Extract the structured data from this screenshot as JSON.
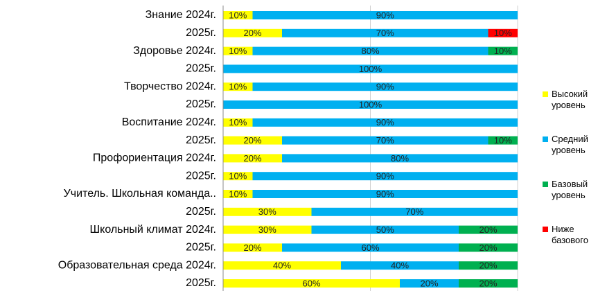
{
  "chart_data": {
    "type": "bar",
    "orientation": "horizontal",
    "stacked": true,
    "categories": [
      "Знание 2024г.",
      "2025г.",
      "Здоровье 2024г.",
      "2025г.",
      "Творчество 2024г.",
      "2025г.",
      "Воспитание 2024г.",
      "2025г.",
      "Профориентация 2024г.",
      "2025г.",
      "Учитель. Школьная команда..",
      "2025г.",
      "Школьный климат 2024г.",
      "2025г.",
      "Образовательная среда 2024г.",
      "2025г."
    ],
    "series": [
      {
        "name": "Высокий уровень",
        "color": "#ffff00",
        "values": [
          10,
          20,
          10,
          0,
          10,
          0,
          10,
          20,
          20,
          10,
          10,
          30,
          30,
          20,
          40,
          60
        ],
        "value_labels": [
          "10%",
          "20%",
          "10%",
          null,
          "10%",
          null,
          "10%",
          "20%",
          "20%",
          "10%",
          "10%",
          "30%",
          "30%",
          "20%",
          "40%",
          "60%"
        ]
      },
      {
        "name": "Средний уровень",
        "color": "#00b0f0",
        "values": [
          90,
          70,
          80,
          100,
          90,
          100,
          90,
          70,
          80,
          90,
          90,
          70,
          50,
          60,
          40,
          20
        ],
        "value_labels": [
          "90%",
          "70%",
          "80%",
          "100%",
          "90%",
          "100%",
          "90%",
          "70%",
          "80%",
          "90%",
          "90%",
          "70%",
          "50%",
          "60%",
          "40%",
          "20%"
        ]
      },
      {
        "name": "Базовый уровень",
        "color": "#00b050",
        "values": [
          0,
          0,
          10,
          0,
          0,
          0,
          0,
          10,
          0,
          0,
          0,
          0,
          20,
          20,
          20,
          20
        ],
        "value_labels": [
          null,
          null,
          "10%",
          null,
          null,
          null,
          null,
          "10%",
          null,
          null,
          null,
          null,
          "20%",
          "20%",
          "20%",
          "20%"
        ]
      },
      {
        "name": "Ниже базового",
        "color": "#ff0000",
        "values": [
          0,
          10,
          0,
          0,
          0,
          0,
          0,
          0,
          0,
          0,
          0,
          0,
          0,
          0,
          0,
          0
        ],
        "value_labels": [
          null,
          "10%",
          null,
          null,
          null,
          null,
          null,
          null,
          null,
          null,
          null,
          null,
          null,
          null,
          null,
          null
        ]
      }
    ],
    "xlim": [
      0,
      100
    ],
    "xticks": [
      0,
      50,
      100
    ],
    "grid": true,
    "legend": "right"
  }
}
